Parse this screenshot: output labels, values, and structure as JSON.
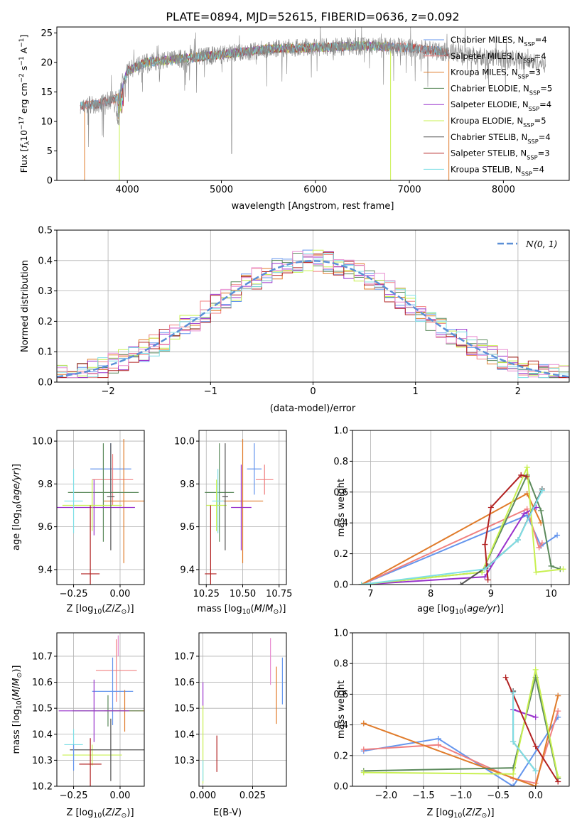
{
  "colors": {
    "chabrier_miles": "#6495ed",
    "salpeter_miles": "#f08080",
    "kroupa_miles": "#e07b2a",
    "chabrier_elodie": "#5c8a5c",
    "salpeter_elodie": "#9932cc",
    "kroupa_elodie": "#c8f050",
    "chabrier_stelib": "#555555",
    "salpeter_stelib": "#b22222",
    "kroupa_stelib": "#7fdfe6",
    "extra_pink": "#e88ad0",
    "spectrum": "#888888",
    "gaussian": "#5b8fd6",
    "grid": "#b0b0b0"
  },
  "chart_data": [
    {
      "id": "spectrum",
      "type": "line",
      "title": "PLATE=0894, MJD=52615, FIBERID=0636, z=0.092",
      "xlabel": "wavelength [Angstrom, rest frame]",
      "ylabel": "Flux [f_λ10^-17 erg cm^-2 s^-1 A^-1]",
      "xlim": [
        3250,
        8700
      ],
      "ylim": [
        0,
        26
      ],
      "xticks": [
        4000,
        5000,
        6000,
        7000,
        8000
      ],
      "yticks": [
        0,
        5,
        10,
        15,
        20,
        25
      ],
      "grid": false,
      "legend_position": "right",
      "legend": [
        {
          "key": "chabrier_miles",
          "base": "Chabrier MILES, N",
          "sub": "SSP",
          "value": "=4"
        },
        {
          "key": "salpeter_miles",
          "base": "Salpeter MILES, N",
          "sub": "SSP",
          "value": "=4"
        },
        {
          "key": "kroupa_miles",
          "base": "Kroupa MILES, N",
          "sub": "SSP",
          "value": "=3"
        },
        {
          "key": "chabrier_elodie",
          "base": "Chabrier ELODIE, N",
          "sub": "SSP",
          "value": "=5"
        },
        {
          "key": "salpeter_elodie",
          "base": "Salpeter ELODIE, N",
          "sub": "SSP",
          "value": "=4"
        },
        {
          "key": "kroupa_elodie",
          "base": "Kroupa ELODIE, N",
          "sub": "SSP",
          "value": "=5"
        },
        {
          "key": "chabrier_stelib",
          "base": "Chabrier STELIB, N",
          "sub": "SSP",
          "value": "=4"
        },
        {
          "key": "salpeter_stelib",
          "base": "Salpeter STELIB, N",
          "sub": "SSP",
          "value": "=3"
        },
        {
          "key": "kroupa_stelib",
          "base": "Kroupa STELIB, N",
          "sub": "SSP",
          "value": "=4"
        }
      ],
      "series_range": {
        "x_start": 3500,
        "x_end": 8450
      },
      "continuum": [
        [
          3500,
          12.5
        ],
        [
          3700,
          13.0
        ],
        [
          3900,
          14.0
        ],
        [
          4000,
          18.5
        ],
        [
          4200,
          20.0
        ],
        [
          4500,
          20.5
        ],
        [
          5000,
          21.3
        ],
        [
          5500,
          22.3
        ],
        [
          6000,
          22.5
        ],
        [
          6500,
          22.8
        ],
        [
          7000,
          22.5
        ],
        [
          7500,
          21.5
        ],
        [
          8000,
          20.7
        ],
        [
          8450,
          19.8
        ]
      ]
    },
    {
      "id": "residuals",
      "type": "histogram",
      "xlabel": "(data-model)/error",
      "ylabel": "Normed distribution",
      "xlim": [
        -2.5,
        2.5
      ],
      "ylim": [
        0,
        0.5
      ],
      "xticks": [
        -2,
        -1,
        0,
        1,
        2
      ],
      "yticks": [
        0.0,
        0.1,
        0.2,
        0.3,
        0.4,
        0.5
      ],
      "grid": true,
      "legend_position": "top-right",
      "gaussian_label": "N(0,1)",
      "bin_width": 0.1
    },
    {
      "id": "age_vs_Z",
      "type": "errorbar",
      "xlabel": "Z [log10(Z/Z⊙)]",
      "ylabel": "age  [log10(age/yr)]",
      "xlim": [
        -0.34,
        0.13
      ],
      "ylim": [
        9.33,
        10.05
      ],
      "xticks": [
        -0.25,
        0.0
      ],
      "yticks": [
        9.4,
        9.6,
        9.8,
        10.0
      ],
      "grid": true,
      "points": [
        {
          "c": "chabrier_miles",
          "x": -0.05,
          "y": 9.87,
          "xerr": 0.11,
          "yerr": 0.12
        },
        {
          "c": "salpeter_miles",
          "x": -0.04,
          "y": 9.82,
          "xerr": 0.11,
          "yerr": 0.12
        },
        {
          "c": "kroupa_miles",
          "x": 0.02,
          "y": 9.72,
          "xerr": 0.11,
          "yerr": 0.29
        },
        {
          "c": "chabrier_elodie",
          "x": -0.09,
          "y": 9.76,
          "xerr": 0.19,
          "yerr": 0.23
        },
        {
          "c": "salpeter_elodie",
          "x": -0.14,
          "y": 9.69,
          "xerr": 0.22,
          "yerr": 0.13
        },
        {
          "c": "kroupa_elodie",
          "x": -0.15,
          "y": 9.7,
          "xerr": 0.16,
          "yerr": 0.12
        },
        {
          "c": "chabrier_stelib",
          "x": -0.05,
          "y": 9.74,
          "xerr": 0.02,
          "yerr": 0.25
        },
        {
          "c": "salpeter_stelib",
          "x": -0.16,
          "y": 9.38,
          "xerr": 0.05,
          "yerr": 0.32
        },
        {
          "c": "kroupa_stelib",
          "x": -0.25,
          "y": 9.72,
          "xerr": 0.05,
          "yerr": 0.15
        }
      ]
    },
    {
      "id": "age_vs_mass",
      "type": "errorbar",
      "xlabel": "mass [log10(M/M⊙)]",
      "ylabel": "",
      "xlim": [
        10.2,
        10.8
      ],
      "ylim": [
        9.33,
        10.05
      ],
      "xticks": [
        10.25,
        10.5,
        10.75
      ],
      "yticks": [
        9.4,
        9.6,
        9.8,
        10.0
      ],
      "grid": true,
      "points": [
        {
          "c": "chabrier_miles",
          "x": 10.58,
          "y": 9.87,
          "xerr": 0.05,
          "yerr": 0.12
        },
        {
          "c": "salpeter_miles",
          "x": 10.65,
          "y": 9.82,
          "xerr": 0.06,
          "yerr": 0.07
        },
        {
          "c": "kroupa_miles",
          "x": 10.5,
          "y": 9.72,
          "xerr": 0.14,
          "yerr": 0.29
        },
        {
          "c": "chabrier_elodie",
          "x": 10.34,
          "y": 9.76,
          "xerr": 0.1,
          "yerr": 0.23
        },
        {
          "c": "salpeter_elodie",
          "x": 10.49,
          "y": 9.69,
          "xerr": 0.07,
          "yerr": 0.2
        },
        {
          "c": "kroupa_elodie",
          "x": 10.32,
          "y": 9.7,
          "xerr": 0.07,
          "yerr": 0.12
        },
        {
          "c": "chabrier_stelib",
          "x": 10.38,
          "y": 9.74,
          "xerr": 0.02,
          "yerr": 0.25
        },
        {
          "c": "salpeter_stelib",
          "x": 10.28,
          "y": 9.38,
          "xerr": 0.04,
          "yerr": 0.32
        },
        {
          "c": "kroupa_stelib",
          "x": 10.33,
          "y": 9.72,
          "xerr": 0.04,
          "yerr": 0.15
        }
      ]
    },
    {
      "id": "weight_vs_age",
      "type": "line",
      "xlabel": "age  [log10(age/yr)]",
      "ylabel": "mass weight",
      "xlim": [
        6.7,
        10.3
      ],
      "ylim": [
        0,
        1
      ],
      "xticks": [
        7,
        8,
        9,
        10
      ],
      "yticks": [
        0.0,
        0.2,
        0.4,
        0.6,
        0.8,
        1.0
      ],
      "grid": true,
      "series": [
        {
          "c": "chabrier_miles",
          "x": [
            6.85,
            9.6,
            9.83,
            10.1
          ],
          "y": [
            0.0,
            0.45,
            0.25,
            0.32
          ]
        },
        {
          "c": "salpeter_miles",
          "x": [
            6.85,
            9.6,
            9.8,
            9.85
          ],
          "y": [
            0.0,
            0.49,
            0.24,
            0.27
          ]
        },
        {
          "c": "kroupa_miles",
          "x": [
            6.85,
            9.6,
            9.83
          ],
          "y": [
            0.0,
            0.59,
            0.4
          ]
        },
        {
          "c": "chabrier_elodie",
          "x": [
            6.85,
            8.85,
            9.6,
            9.83,
            10.0,
            10.15
          ],
          "y": [
            0.0,
            0.08,
            0.71,
            0.48,
            0.12,
            0.1
          ]
        },
        {
          "c": "salpeter_elodie",
          "x": [
            6.85,
            8.9,
            9.55,
            9.75
          ],
          "y": [
            0.0,
            0.05,
            0.46,
            0.5
          ]
        },
        {
          "c": "kroupa_elodie",
          "x": [
            6.85,
            8.85,
            9.6,
            9.75,
            10.2
          ],
          "y": [
            0.0,
            0.08,
            0.76,
            0.08,
            0.1
          ]
        },
        {
          "c": "chabrier_stelib",
          "x": [
            8.5,
            8.95,
            9.45,
            9.85
          ],
          "y": [
            0.0,
            0.12,
            0.29,
            0.62
          ]
        },
        {
          "c": "salpeter_stelib",
          "x": [
            8.95,
            8.9,
            9.0,
            9.5,
            9.6
          ],
          "y": [
            0.03,
            0.26,
            0.5,
            0.71,
            0.7
          ]
        },
        {
          "c": "kroupa_stelib",
          "x": [
            6.85,
            8.9,
            9.45,
            9.85
          ],
          "y": [
            0.0,
            0.1,
            0.29,
            0.61
          ]
        }
      ]
    },
    {
      "id": "mass_vs_Z",
      "type": "errorbar",
      "xlabel": "Z [log10(Z/Z⊙)]",
      "ylabel": "mass [log10(M/M⊙)]",
      "xlim": [
        -0.34,
        0.13
      ],
      "ylim": [
        10.2,
        10.79
      ],
      "xticks": [
        -0.25,
        0.0
      ],
      "yticks": [
        10.2,
        10.3,
        10.4,
        10.5,
        10.6,
        10.7
      ],
      "grid": true,
      "points": [
        {
          "c": "salpeter_miles",
          "x": -0.02,
          "y": 10.645,
          "xerr": 0.11,
          "yerr": 0.12
        },
        {
          "c": "chabrier_miles",
          "x": -0.04,
          "y": 10.565,
          "xerr": 0.11,
          "yerr": 0.13
        },
        {
          "c": "kroupa_miles",
          "x": 0.025,
          "y": 10.49,
          "xerr": 0.11,
          "yerr": 0.08
        },
        {
          "c": "chabrier_elodie",
          "x": -0.065,
          "y": 10.49,
          "xerr": 0.19,
          "yerr": 0.06
        },
        {
          "c": "salpeter_elodie",
          "x": -0.14,
          "y": 10.49,
          "xerr": 0.19,
          "yerr": 0.12
        },
        {
          "c": "kroupa_elodie",
          "x": -0.15,
          "y": 10.32,
          "xerr": 0.16,
          "yerr": 0.04
        },
        {
          "c": "chabrier_stelib",
          "x": -0.05,
          "y": 10.34,
          "xerr": 0.22,
          "yerr": 0.12
        },
        {
          "c": "salpeter_stelib",
          "x": -0.16,
          "y": 10.285,
          "xerr": 0.06,
          "yerr": 0.1
        },
        {
          "c": "kroupa_stelib",
          "x": -0.25,
          "y": 10.36,
          "xerr": 0.05,
          "yerr": 0.06
        },
        {
          "c": "chabrier_miles",
          "x": -0.25,
          "y": 10.31,
          "xerr": 0.0,
          "yerr": 0.05
        },
        {
          "c": "extra_pink",
          "x": -0.01,
          "y": 10.74,
          "xerr": 0.0,
          "yerr": 0.04
        }
      ]
    },
    {
      "id": "mass_vs_EBV",
      "type": "errorbar",
      "xlabel": "E(B-V)",
      "ylabel": "",
      "xlim": [
        -0.002,
        0.042
      ],
      "ylim": [
        10.2,
        10.79
      ],
      "xticks": [
        0.0,
        0.025
      ],
      "yticks": [
        10.3,
        10.4,
        10.5,
        10.6,
        10.7
      ],
      "grid": true,
      "points": [
        {
          "c": "salpeter_elodie",
          "x": 0.0,
          "y": 10.55,
          "xerr": 0.0,
          "yerr": 0.05
        },
        {
          "c": "kroupa_elodie",
          "x": 0.0,
          "y": 10.36,
          "xerr": 0.0,
          "yerr": 0.15
        },
        {
          "c": "kroupa_stelib",
          "x": 0.0,
          "y": 10.26,
          "xerr": 0.0,
          "yerr": 0.04
        },
        {
          "c": "salpeter_stelib",
          "x": 0.007,
          "y": 10.325,
          "xerr": 0.0,
          "yerr": 0.07
        },
        {
          "c": "extra_pink",
          "x": 0.034,
          "y": 10.68,
          "xerr": 0.0,
          "yerr": 0.09
        },
        {
          "c": "kroupa_miles",
          "x": 0.037,
          "y": 10.55,
          "xerr": 0.0,
          "yerr": 0.11
        },
        {
          "c": "chabrier_miles",
          "x": 0.04,
          "y": 10.605,
          "xerr": 0.0,
          "yerr": 0.09
        }
      ]
    },
    {
      "id": "weight_vs_Z",
      "type": "line",
      "xlabel": "Z [log10(Z/Z⊙)]",
      "ylabel": "mass weight",
      "xlim": [
        -2.45,
        0.45
      ],
      "ylim": [
        0,
        1
      ],
      "xticks": [
        -2.0,
        -1.5,
        -1.0,
        -0.5,
        0.0
      ],
      "yticks": [
        0.0,
        0.2,
        0.4,
        0.6,
        0.8,
        1.0
      ],
      "grid": true,
      "series": [
        {
          "c": "chabrier_miles",
          "x": [
            -2.3,
            -1.3,
            -0.3,
            0.3
          ],
          "y": [
            0.23,
            0.31,
            0.0,
            0.45
          ]
        },
        {
          "c": "salpeter_miles",
          "x": [
            -2.3,
            -1.3,
            -0.3,
            0.0,
            0.3
          ],
          "y": [
            0.24,
            0.27,
            0.05,
            0.02,
            0.49
          ]
        },
        {
          "c": "kroupa_miles",
          "x": [
            -2.3,
            0.0,
            0.3
          ],
          "y": [
            0.41,
            0.0,
            0.59
          ]
        },
        {
          "c": "chabrier_elodie",
          "x": [
            -2.3,
            -0.3,
            0.0,
            0.3
          ],
          "y": [
            0.1,
            0.12,
            0.71,
            0.05
          ]
        },
        {
          "c": "salpeter_elodie",
          "x": [
            -0.3,
            0.0
          ],
          "y": [
            0.5,
            0.45
          ]
        },
        {
          "c": "kroupa_elodie",
          "x": [
            -2.3,
            -0.3,
            0.0,
            0.3
          ],
          "y": [
            0.09,
            0.08,
            0.76,
            0.06
          ]
        },
        {
          "c": "chabrier_stelib",
          "x": [
            -0.3,
            -0.3,
            0.0
          ],
          "y": [
            0.62,
            0.29,
            0.1
          ]
        },
        {
          "c": "salpeter_stelib",
          "x": [
            -0.4,
            0.0,
            0.3
          ],
          "y": [
            0.71,
            0.26,
            0.03
          ]
        },
        {
          "c": "kroupa_stelib",
          "x": [
            -0.3,
            -0.3,
            0.0
          ],
          "y": [
            0.61,
            0.29,
            0.1
          ]
        }
      ]
    }
  ]
}
